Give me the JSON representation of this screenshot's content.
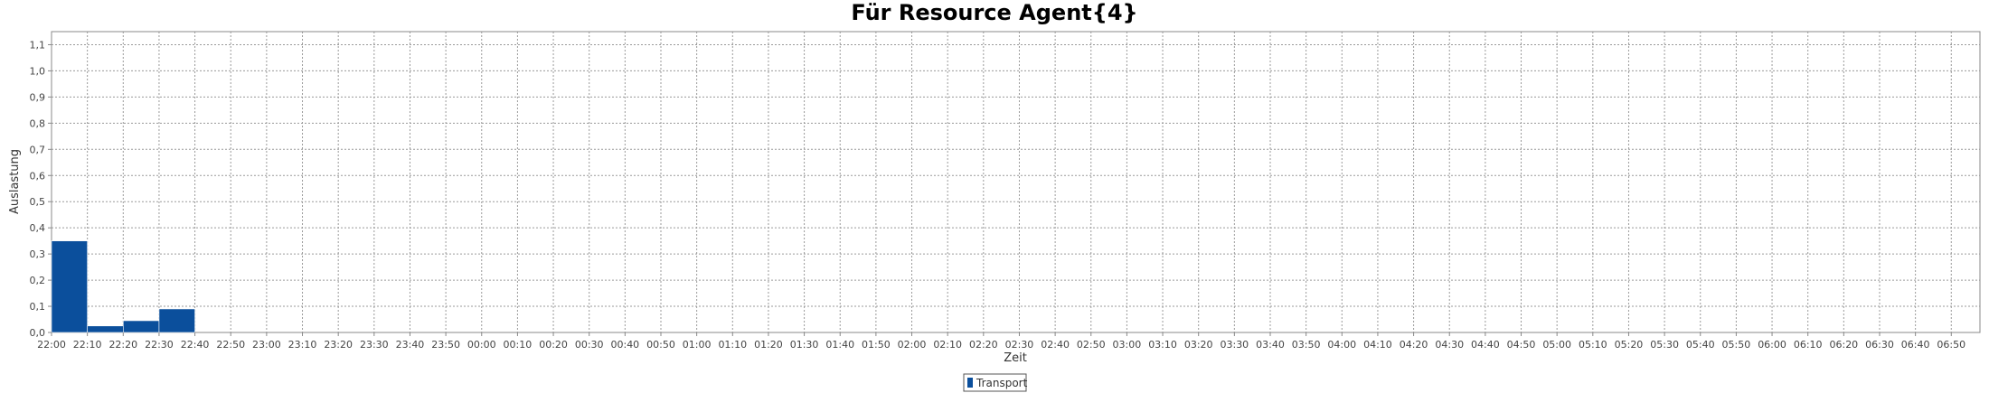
{
  "chart_data": {
    "type": "bar",
    "title": "Für Resource Agent{4}",
    "xlabel": "Zeit",
    "ylabel": "Auslastung",
    "ylim": [
      0.0,
      1.15
    ],
    "yticks": [
      0.0,
      0.1,
      0.2,
      0.3,
      0.4,
      0.5,
      0.6,
      0.7,
      0.8,
      0.9,
      1.0,
      1.1
    ],
    "ytick_labels": [
      "0,0",
      "0,1",
      "0,2",
      "0,3",
      "0,4",
      "0,5",
      "0,6",
      "0,7",
      "0,8",
      "0,9",
      "1,0",
      "1,1"
    ],
    "xticks": [
      "22:00",
      "22:10",
      "22:20",
      "22:30",
      "22:40",
      "22:50",
      "23:00",
      "23:10",
      "23:20",
      "23:30",
      "23:40",
      "23:50",
      "00:00",
      "00:10",
      "00:20",
      "00:30",
      "00:40",
      "00:50",
      "01:00",
      "01:10",
      "01:20",
      "01:30",
      "01:40",
      "01:50",
      "02:00",
      "02:10",
      "02:20",
      "02:30",
      "02:40",
      "02:50",
      "03:00",
      "03:10",
      "03:20",
      "03:30",
      "03:40",
      "03:50",
      "04:00",
      "04:10",
      "04:20",
      "04:30",
      "04:40",
      "04:50",
      "05:00",
      "05:10",
      "05:20",
      "05:30",
      "05:40",
      "05:50",
      "06:00",
      "06:10",
      "06:20",
      "06:30",
      "06:40",
      "06:50"
    ],
    "x_end": "06:58",
    "series": [
      {
        "name": "Transport",
        "color": "#0b4f9c",
        "bars": [
          {
            "start": "22:00",
            "end": "22:10",
            "value": 0.35
          },
          {
            "start": "22:10",
            "end": "22:20",
            "value": 0.025
          },
          {
            "start": "22:20",
            "end": "22:30",
            "value": 0.045
          },
          {
            "start": "22:30",
            "end": "22:40",
            "value": 0.09
          }
        ]
      }
    ],
    "grid": true,
    "legend_position": "bottom-center"
  }
}
